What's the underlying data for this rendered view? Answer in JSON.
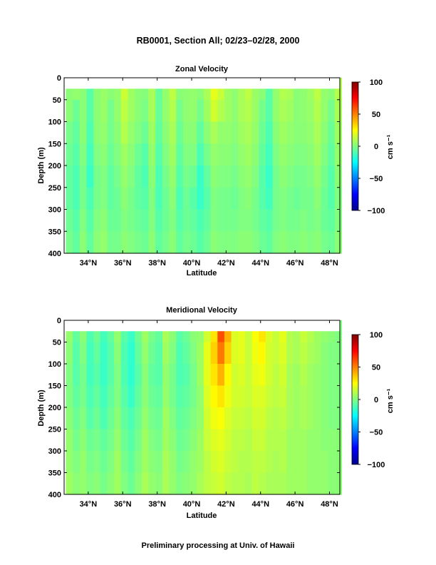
{
  "figure": {
    "title": "RB0001, Section All; 02/23–02/28, 2000",
    "footer": "Preliminary processing at Univ. of Hawaii"
  },
  "colormap": {
    "stops": [
      "#00008f",
      "#0000ff",
      "#0080ff",
      "#00ffff",
      "#80ff80",
      "#ffff00",
      "#ff8000",
      "#ff0000",
      "#800000"
    ],
    "no_data_color": "#ffffff"
  },
  "chart_data": [
    {
      "type": "heatmap",
      "title": "Zonal Velocity",
      "xlabel": "Latitude",
      "ylabel": "Depth (m)",
      "xlim": [
        32.6,
        48.6
      ],
      "ylim": [
        400,
        0
      ],
      "x_ticks": [
        34,
        36,
        38,
        40,
        42,
        44,
        46,
        48
      ],
      "x_tick_labels": [
        "34°N",
        "36°N",
        "38°N",
        "40°N",
        "42°N",
        "44°N",
        "46°N",
        "48°N"
      ],
      "y_ticks": [
        0,
        50,
        100,
        150,
        200,
        250,
        300,
        350,
        400
      ],
      "y_tick_labels": [
        "0",
        "50",
        "100",
        "150",
        "200",
        "250",
        "300",
        "350",
        "400"
      ],
      "data_depth_range": [
        25,
        400
      ],
      "colorbar": {
        "label": "cm s⁻¹",
        "range": [
          -100,
          100
        ],
        "ticks": [
          -100,
          -50,
          0,
          50,
          100
        ],
        "tick_labels": [
          "−100",
          "−50",
          "0",
          "50",
          "100"
        ]
      },
      "lat": [
        32.9,
        33.3,
        33.7,
        34.1,
        34.5,
        34.9,
        35.3,
        35.7,
        36.1,
        36.5,
        36.9,
        37.3,
        37.7,
        38.1,
        38.5,
        38.9,
        39.3,
        39.7,
        40.1,
        40.5,
        40.9,
        41.3,
        41.7,
        42.1,
        42.5,
        42.9,
        43.3,
        43.7,
        44.1,
        44.5,
        44.9,
        45.3,
        45.7,
        46.1,
        46.5,
        46.9,
        47.3,
        47.7,
        48.1,
        48.5
      ],
      "depth": [
        25,
        75,
        125,
        175,
        225,
        275,
        325,
        375
      ],
      "values": [
        [
          2,
          4,
          2,
          -8,
          2,
          5,
          2,
          4,
          15,
          6,
          2,
          1,
          8,
          -5,
          4,
          12,
          2,
          3,
          4,
          2,
          8,
          20,
          14,
          6,
          3,
          8,
          12,
          5,
          2,
          -8,
          4,
          10,
          8,
          2,
          3,
          6,
          12,
          4,
          2,
          10
        ],
        [
          2,
          -4,
          2,
          -8,
          2,
          5,
          -2,
          4,
          12,
          6,
          2,
          -1,
          8,
          -5,
          4,
          10,
          -2,
          3,
          4,
          -2,
          6,
          16,
          10,
          6,
          3,
          8,
          10,
          5,
          -2,
          -8,
          4,
          8,
          6,
          2,
          3,
          5,
          10,
          4,
          -2,
          8
        ],
        [
          -2,
          -6,
          2,
          -10,
          2,
          4,
          -2,
          2,
          10,
          4,
          0,
          -4,
          6,
          -6,
          2,
          8,
          -4,
          2,
          2,
          -6,
          2,
          8,
          4,
          4,
          2,
          6,
          8,
          4,
          -4,
          -10,
          2,
          6,
          4,
          2,
          2,
          4,
          8,
          2,
          -4,
          6
        ],
        [
          -4,
          -8,
          0,
          -12,
          0,
          2,
          -4,
          0,
          6,
          2,
          -4,
          -8,
          4,
          -8,
          0,
          6,
          -6,
          0,
          0,
          -10,
          -2,
          4,
          2,
          2,
          0,
          4,
          6,
          2,
          -6,
          -12,
          0,
          4,
          2,
          0,
          0,
          2,
          6,
          0,
          -6,
          4
        ],
        [
          -6,
          -10,
          -2,
          -14,
          -2,
          0,
          -6,
          -2,
          4,
          0,
          -6,
          -10,
          2,
          -10,
          -2,
          4,
          -8,
          -2,
          -4,
          -14,
          -6,
          2,
          0,
          0,
          -2,
          2,
          4,
          0,
          -8,
          -14,
          -2,
          2,
          0,
          -2,
          -2,
          0,
          4,
          -2,
          -8,
          2
        ],
        [
          -6,
          -10,
          -2,
          -10,
          -2,
          0,
          -6,
          -4,
          2,
          -2,
          -6,
          -8,
          0,
          -10,
          -4,
          2,
          -10,
          -4,
          -8,
          -14,
          -8,
          0,
          -2,
          -2,
          -4,
          0,
          2,
          -2,
          -8,
          -12,
          -2,
          0,
          -2,
          -4,
          -2,
          -2,
          2,
          -4,
          -8,
          0
        ],
        [
          -4,
          -8,
          0,
          -8,
          0,
          2,
          -4,
          -4,
          0,
          -2,
          -4,
          -6,
          0,
          -8,
          -4,
          0,
          -8,
          -4,
          -6,
          -10,
          -6,
          0,
          -2,
          -2,
          -2,
          0,
          0,
          -2,
          -6,
          -8,
          -2,
          0,
          -2,
          -2,
          0,
          -2,
          0,
          -4,
          -6,
          0
        ],
        [
          -2,
          -6,
          2,
          -6,
          2,
          4,
          -2,
          -2,
          2,
          0,
          -2,
          -4,
          2,
          -6,
          -2,
          2,
          -6,
          -2,
          -4,
          -8,
          -4,
          2,
          0,
          0,
          0,
          2,
          2,
          0,
          -4,
          -6,
          0,
          2,
          0,
          0,
          2,
          0,
          2,
          -2,
          -4,
          2
        ]
      ]
    },
    {
      "type": "heatmap",
      "title": "Meridional Velocity",
      "xlabel": "Latitude",
      "ylabel": "Depth (m)",
      "xlim": [
        32.6,
        48.6
      ],
      "ylim": [
        400,
        0
      ],
      "x_ticks": [
        34,
        36,
        38,
        40,
        42,
        44,
        46,
        48
      ],
      "x_tick_labels": [
        "34°N",
        "36°N",
        "38°N",
        "40°N",
        "42°N",
        "44°N",
        "46°N",
        "48°N"
      ],
      "y_ticks": [
        0,
        50,
        100,
        150,
        200,
        250,
        300,
        350,
        400
      ],
      "y_tick_labels": [
        "0",
        "50",
        "100",
        "150",
        "200",
        "250",
        "300",
        "350",
        "400"
      ],
      "data_depth_range": [
        25,
        400
      ],
      "colorbar": {
        "label": "cm s⁻¹",
        "range": [
          -100,
          100
        ],
        "ticks": [
          -100,
          -50,
          0,
          50,
          100
        ],
        "tick_labels": [
          "−100",
          "−50",
          "0",
          "50",
          "100"
        ]
      },
      "lat": [
        32.9,
        33.3,
        33.7,
        34.1,
        34.5,
        34.9,
        35.3,
        35.7,
        36.1,
        36.5,
        36.9,
        37.3,
        37.7,
        38.1,
        38.5,
        38.9,
        39.3,
        39.7,
        40.1,
        40.5,
        40.9,
        41.3,
        41.7,
        42.1,
        42.5,
        42.9,
        43.3,
        43.7,
        44.1,
        44.5,
        44.9,
        45.3,
        45.7,
        46.1,
        46.5,
        46.9,
        47.3,
        47.7,
        48.1,
        48.5
      ],
      "depth": [
        25,
        75,
        125,
        175,
        225,
        275,
        325,
        375
      ],
      "values": [
        [
          4,
          -6,
          2,
          -10,
          -4,
          -12,
          -6,
          4,
          -8,
          -14,
          -4,
          6,
          -2,
          -6,
          8,
          2,
          -8,
          -4,
          2,
          4,
          16,
          30,
          60,
          40,
          18,
          20,
          14,
          24,
          30,
          18,
          14,
          20,
          10,
          8,
          14,
          10,
          6,
          4,
          2,
          0
        ],
        [
          2,
          -8,
          0,
          -12,
          -6,
          -14,
          -8,
          2,
          -10,
          -16,
          -6,
          4,
          -4,
          -8,
          6,
          0,
          -10,
          -6,
          0,
          6,
          20,
          34,
          52,
          34,
          18,
          20,
          14,
          22,
          26,
          16,
          14,
          18,
          10,
          8,
          12,
          8,
          6,
          2,
          0,
          0
        ],
        [
          0,
          -8,
          -2,
          -12,
          -8,
          -14,
          -8,
          0,
          -10,
          -16,
          -8,
          2,
          -6,
          -8,
          4,
          -2,
          -10,
          -8,
          -2,
          6,
          20,
          30,
          40,
          26,
          16,
          18,
          14,
          20,
          22,
          16,
          12,
          16,
          8,
          6,
          10,
          6,
          4,
          2,
          0,
          0
        ],
        [
          0,
          -6,
          -2,
          -10,
          -6,
          -12,
          -6,
          0,
          -8,
          -14,
          -6,
          2,
          -4,
          -6,
          4,
          -2,
          -8,
          -6,
          -2,
          4,
          18,
          26,
          30,
          22,
          16,
          16,
          14,
          18,
          18,
          14,
          12,
          14,
          8,
          6,
          8,
          6,
          4,
          2,
          0,
          0
        ],
        [
          2,
          -4,
          0,
          -8,
          -4,
          -10,
          -4,
          2,
          -6,
          -10,
          -4,
          4,
          -2,
          -4,
          6,
          0,
          -6,
          -4,
          0,
          4,
          16,
          22,
          24,
          18,
          14,
          14,
          12,
          16,
          16,
          12,
          10,
          12,
          8,
          6,
          8,
          6,
          4,
          2,
          0,
          0
        ],
        [
          4,
          -2,
          2,
          -4,
          -2,
          -6,
          -2,
          4,
          -4,
          -8,
          -2,
          6,
          0,
          -2,
          6,
          2,
          -4,
          -2,
          2,
          6,
          14,
          18,
          20,
          16,
          12,
          12,
          10,
          14,
          14,
          10,
          10,
          10,
          6,
          6,
          6,
          4,
          4,
          2,
          2,
          2
        ],
        [
          4,
          0,
          4,
          -2,
          0,
          -4,
          0,
          6,
          -2,
          -6,
          0,
          6,
          2,
          0,
          8,
          4,
          -2,
          0,
          4,
          6,
          12,
          16,
          18,
          14,
          12,
          10,
          10,
          12,
          12,
          10,
          8,
          10,
          6,
          6,
          6,
          4,
          4,
          4,
          2,
          2
        ],
        [
          6,
          2,
          4,
          0,
          2,
          -2,
          2,
          6,
          0,
          -4,
          2,
          8,
          4,
          2,
          8,
          4,
          0,
          2,
          4,
          8,
          12,
          14,
          16,
          12,
          10,
          10,
          8,
          12,
          10,
          8,
          8,
          8,
          6,
          6,
          6,
          4,
          4,
          4,
          2,
          2
        ]
      ]
    }
  ]
}
